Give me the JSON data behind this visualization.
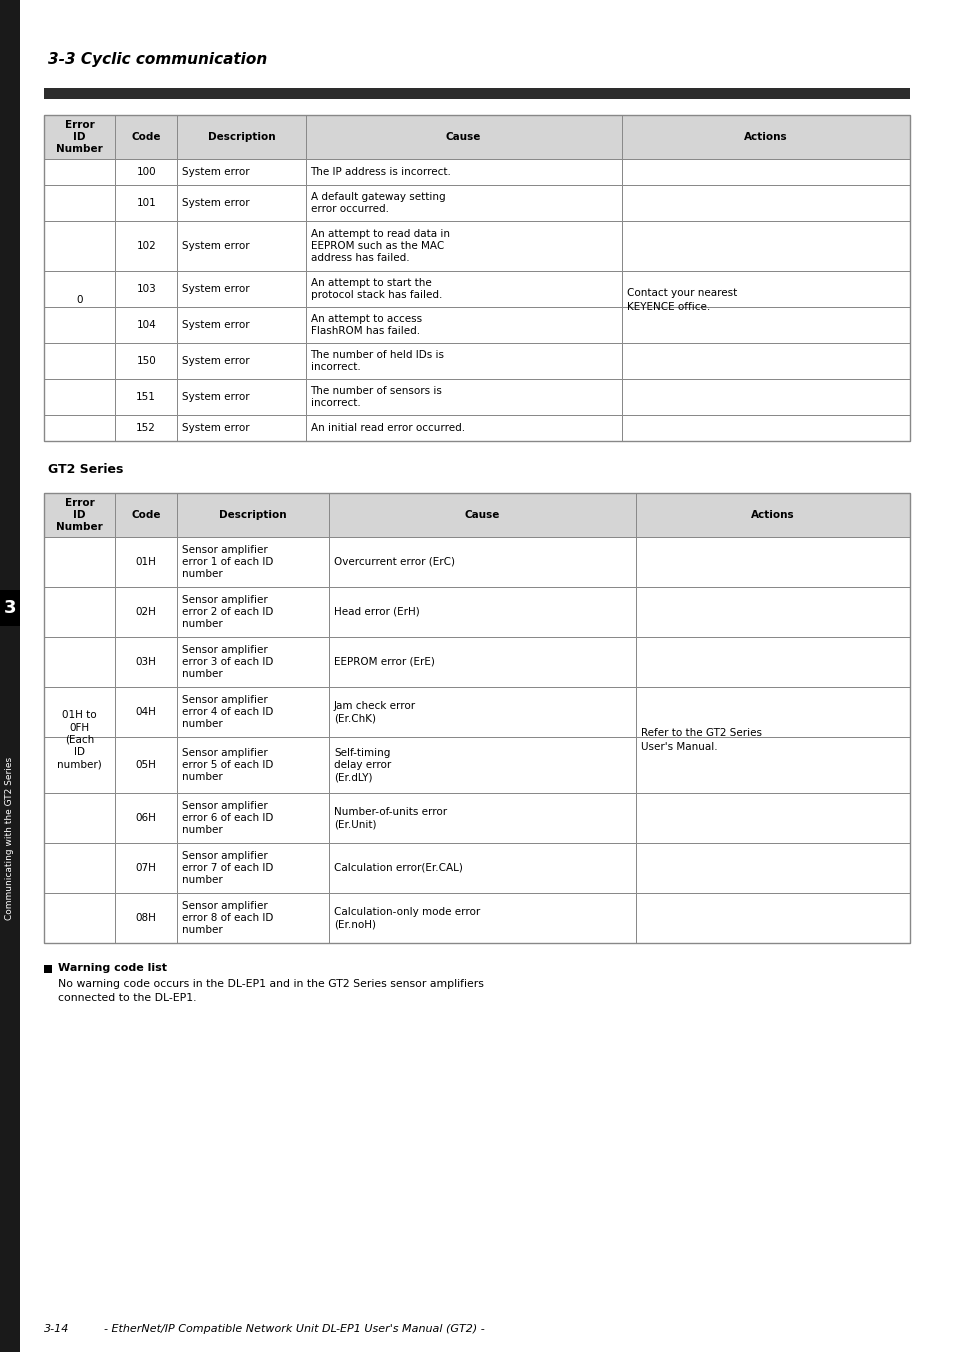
{
  "page_title": "3-3 Cyclic communication",
  "sidebar_text": "Communicating with the GT2 Series",
  "sidebar_number": "3",
  "footer_left": "3-14",
  "footer_right": "- EtherNet/IP Compatible Network Unit DL-EP1 User's Manual (GT2) -",
  "table1_headers": [
    "Error\nID\nNumber",
    "Code",
    "Description",
    "Cause",
    "Actions"
  ],
  "table1_col_ratios": [
    0.082,
    0.072,
    0.148,
    0.365,
    0.333
  ],
  "table1_rows": [
    [
      "",
      "100",
      "System error",
      "The IP address is incorrect.",
      ""
    ],
    [
      "",
      "101",
      "System error",
      "A default gateway setting\nerror occurred.",
      ""
    ],
    [
      "",
      "102",
      "System error",
      "An attempt to read data in\nEEPROM such as the MAC\naddress has failed.",
      ""
    ],
    [
      "0",
      "103",
      "System error",
      "An attempt to start the\nprotocol stack has failed.",
      "Contact your nearest\nKEYENCE office."
    ],
    [
      "",
      "104",
      "System error",
      "An attempt to access\nFlashROM has failed.",
      ""
    ],
    [
      "",
      "150",
      "System error",
      "The number of held IDs is\nincorrect.",
      ""
    ],
    [
      "",
      "151",
      "System error",
      "The number of sensors is\nincorrect.",
      ""
    ],
    [
      "",
      "152",
      "System error",
      "An initial read error occurred.",
      ""
    ]
  ],
  "table1_row_heights": [
    26,
    36,
    50,
    36,
    36,
    36,
    36,
    26
  ],
  "gt2_title": "GT2 Series",
  "table2_headers": [
    "Error\nID\nNumber",
    "Code",
    "Description",
    "Cause",
    "Actions"
  ],
  "table2_col_ratios": [
    0.082,
    0.072,
    0.175,
    0.355,
    0.316
  ],
  "table2_rows": [
    [
      "",
      "01H",
      "Sensor amplifier\nerror 1 of each ID\nnumber",
      "Overcurrent error (ErC)",
      ""
    ],
    [
      "",
      "02H",
      "Sensor amplifier\nerror 2 of each ID\nnumber",
      "Head error (ErH)",
      ""
    ],
    [
      "",
      "03H",
      "Sensor amplifier\nerror 3 of each ID\nnumber",
      "EEPROM error (ErE)",
      ""
    ],
    [
      "01H to\n0FH\n(Each\nID\nnumber)",
      "04H",
      "Sensor amplifier\nerror 4 of each ID\nnumber",
      "Jam check error\n(Er.ChK)",
      "Refer to the GT2 Series\nUser's Manual."
    ],
    [
      "",
      "05H",
      "Sensor amplifier\nerror 5 of each ID\nnumber",
      "Self-timing\ndelay error\n(Er.dLY)",
      ""
    ],
    [
      "",
      "06H",
      "Sensor amplifier\nerror 6 of each ID\nnumber",
      "Number-of-units error\n(Er.Unit)",
      ""
    ],
    [
      "",
      "07H",
      "Sensor amplifier\nerror 7 of each ID\nnumber",
      "Calculation error(Er.CAL)",
      ""
    ],
    [
      "",
      "08H",
      "Sensor amplifier\nerror 8 of each ID\nnumber",
      "Calculation-only mode error\n(Er.noH)",
      ""
    ]
  ],
  "table2_row_heights": [
    50,
    50,
    50,
    50,
    56,
    50,
    50,
    50
  ],
  "warning_title": "Warning code list",
  "warning_text": "No warning code occurs in the DL-EP1 and in the GT2 Series sensor amplifiers\nconnected to the DL-EP1.",
  "header_bg": "#d5d5d5",
  "border_color": "#888888",
  "dark_bar_color": "#2d2d2d",
  "sidebar_bg": "#1a1a1a"
}
